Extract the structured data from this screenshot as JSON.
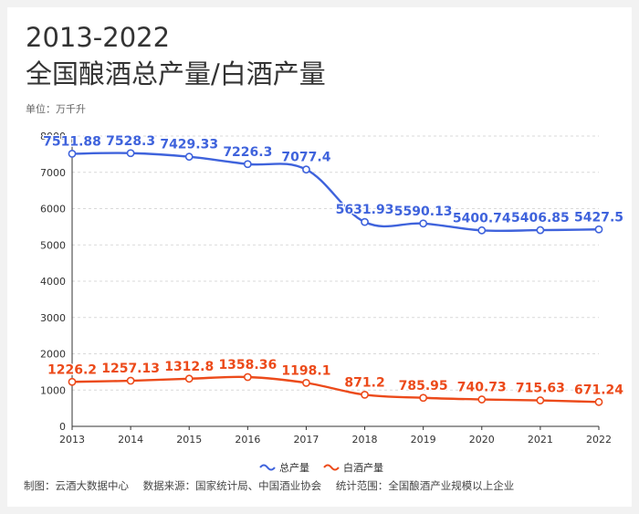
{
  "header": {
    "title_line1": "2013-2022",
    "title_line2": "全国酿酒总产量/白酒产量",
    "unit": "单位：万千升"
  },
  "footer": {
    "maker": "制图：云酒大数据中心",
    "source": "数据来源：国家统计局、中国酒业协会",
    "scope": "统计范围：全国酿酒产业规模以上企业"
  },
  "colors": {
    "total": "#3f63dc",
    "baijiu": "#ec4a1a",
    "grid": "#d9d9d9",
    "axis": "#333333"
  },
  "chart_data": {
    "type": "line",
    "title": "2013-2022 全国酿酒总产量/白酒产量",
    "xlabel": "",
    "ylabel": "单位：万千升",
    "categories": [
      "2013",
      "2014",
      "2015",
      "2016",
      "2017",
      "2018",
      "2019",
      "2020",
      "2021",
      "2022"
    ],
    "ylim": [
      0,
      8000
    ],
    "yticks": [
      0,
      1000,
      2000,
      3000,
      4000,
      5000,
      6000,
      7000,
      8000
    ],
    "grid": true,
    "legend_position": "bottom-center",
    "series": [
      {
        "name": "总产量",
        "values": [
          7511.88,
          7528.3,
          7429.33,
          7226.3,
          7077.4,
          5631.93,
          5590.13,
          5400.74,
          5406.85,
          5427.5
        ],
        "labels": [
          "7511.88",
          "7528.3",
          "7429.33",
          "7226.3",
          "7077.4",
          "5631.93",
          "5590.13",
          "5400.74",
          "5406.85",
          "5427.5"
        ]
      },
      {
        "name": "白酒产量",
        "values": [
          1226.2,
          1257.13,
          1312.8,
          1358.36,
          1198.1,
          871.2,
          785.95,
          740.73,
          715.63,
          671.24
        ],
        "labels": [
          "1226.2",
          "1257.13",
          "1312.8",
          "1358.36",
          "1198.1",
          "871.2",
          "785.95",
          "740.73",
          "715.63",
          "671.24"
        ]
      }
    ]
  }
}
